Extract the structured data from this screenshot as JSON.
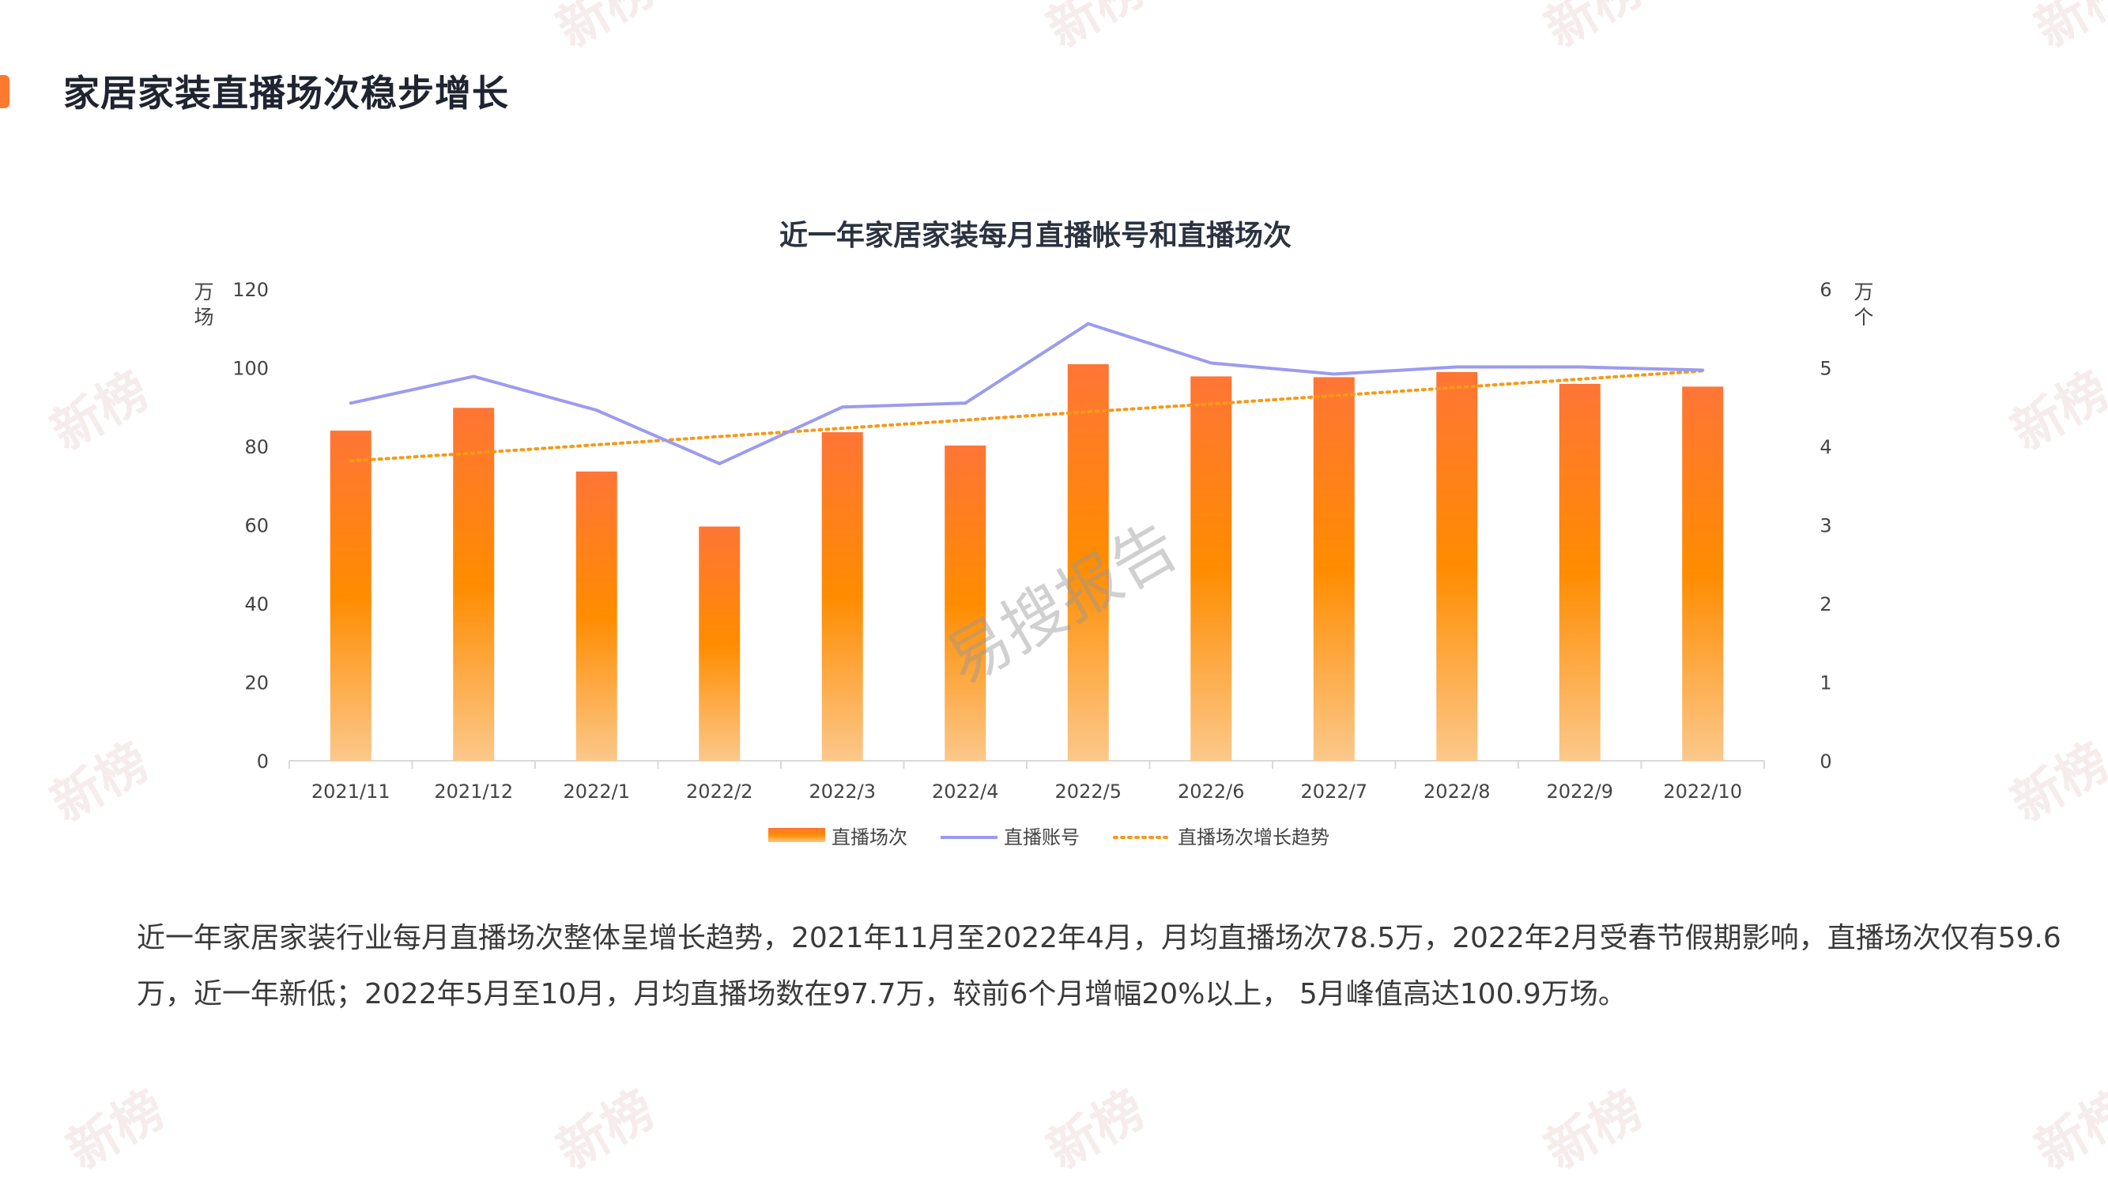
{
  "header": {
    "title": "家居家装直播场次稳步增长",
    "accent_color": "#ff7a2e"
  },
  "watermarks": {
    "brand": "新榜",
    "center": "易搜报告"
  },
  "chart_data": {
    "type": "bar+line",
    "title": "近一年家居家装每月直播帐号和直播场次",
    "categories": [
      "2021/11",
      "2021/12",
      "2022/1",
      "2022/2",
      "2022/3",
      "2022/4",
      "2022/5",
      "2022/6",
      "2022/7",
      "2022/8",
      "2022/9",
      "2022/10"
    ],
    "y_left": {
      "unit_line1": "万",
      "unit_line2": "场",
      "range": [
        0,
        120
      ],
      "ticks": [
        0,
        20,
        40,
        60,
        80,
        100,
        120
      ]
    },
    "y_right": {
      "unit_line1": "万",
      "unit_line2": "个",
      "range": [
        0,
        6
      ],
      "ticks": [
        0,
        1,
        2,
        3,
        4,
        5,
        6
      ]
    },
    "series": [
      {
        "name": "直播场次",
        "type": "bar",
        "axis": "left",
        "color_top": "#ff7536",
        "color_mid": "#ff8c00",
        "color_bottom": "#fcc88a",
        "values": [
          84.0,
          89.8,
          73.6,
          59.6,
          83.6,
          80.2,
          100.9,
          97.8,
          97.6,
          98.9,
          95.9,
          95.2
        ]
      },
      {
        "name": "直播账号",
        "type": "line",
        "axis": "right",
        "color": "#9b9bf0",
        "values": [
          4.55,
          4.89,
          4.46,
          3.78,
          4.5,
          4.55,
          5.56,
          5.06,
          4.92,
          5.01,
          5.01,
          4.97
        ]
      },
      {
        "name": "直播场次增长趋势",
        "type": "trendline",
        "axis": "left",
        "color": "#f59a1b",
        "style": "dotted",
        "values": [
          76.3,
          78.3,
          80.4,
          82.5,
          84.6,
          86.7,
          88.8,
          90.8,
          92.9,
          95.0,
          97.1,
          99.2
        ]
      }
    ],
    "legend_position": "bottom",
    "grid": false
  },
  "summary": {
    "text": "近一年家居家装行业每月直播场次整体呈增长趋势，2021年11月至2022年4月，月均直播场次78.5万，2022年2月受春节假期影响，直播场次仅有59.6万，近一年新低；2022年5月至10月，月均直播场数在97.7万，较前6个月增幅20%以上， 5月峰值高达100.9万场。"
  }
}
